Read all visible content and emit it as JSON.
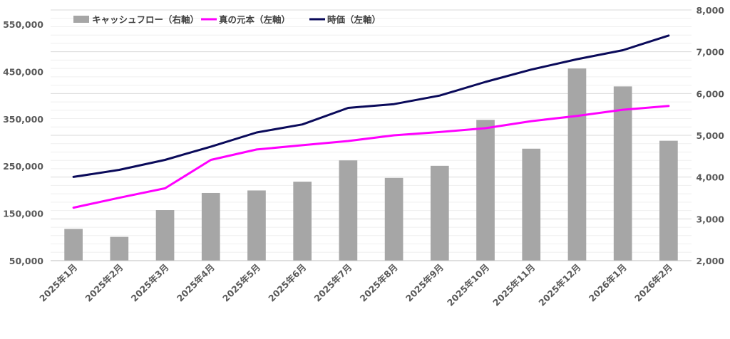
{
  "chart_data": {
    "type": "bar+line",
    "categories": [
      "2025年1月",
      "2025年2月",
      "2025年3月",
      "2025年4月",
      "2025年5月",
      "2025年6月",
      "2025年7月",
      "2025年8月",
      "2025年9月",
      "2025年10月",
      "2025年11月",
      "2025年12月",
      "2026年1月",
      "2026年2月"
    ],
    "left_axis": {
      "ylim": [
        50000,
        580000
      ],
      "ticks": [
        50000,
        150000,
        250000,
        350000,
        450000,
        550000
      ],
      "tick_labels": [
        "50,000",
        "150,000",
        "250,000",
        "350,000",
        "450,000",
        "550,000"
      ]
    },
    "right_axis": {
      "ylim": [
        2000,
        8000
      ],
      "ticks": [
        2000,
        3000,
        4000,
        5000,
        6000,
        7000,
        8000
      ],
      "tick_labels": [
        "2,000",
        "3,000",
        "4,000",
        "5,000",
        "6,000",
        "7,000",
        "8,000"
      ]
    },
    "series": [
      {
        "name": "キャッシュフロー（右軸）",
        "type": "bar",
        "axis": "right",
        "color": "#a6a6a6",
        "values": [
          2760,
          2570,
          3210,
          3620,
          3680,
          3890,
          4400,
          3980,
          4270,
          5370,
          4680,
          6600,
          6170,
          4870
        ]
      },
      {
        "name": "真の元本（左軸）",
        "type": "line",
        "axis": "left",
        "color": "#ff00ff",
        "values": [
          162000,
          183000,
          203000,
          263000,
          285000,
          294000,
          303000,
          315000,
          322000,
          330000,
          345000,
          356000,
          369000,
          377000
        ]
      },
      {
        "name": "時価（左軸）",
        "type": "line",
        "axis": "left",
        "color": "#0a0a5a",
        "values": [
          227000,
          242000,
          263000,
          291000,
          321000,
          338000,
          373000,
          381000,
          399000,
          428000,
          454000,
          476000,
          495000,
          526000
        ]
      }
    ],
    "grid": true,
    "legend_position": "top-left"
  }
}
